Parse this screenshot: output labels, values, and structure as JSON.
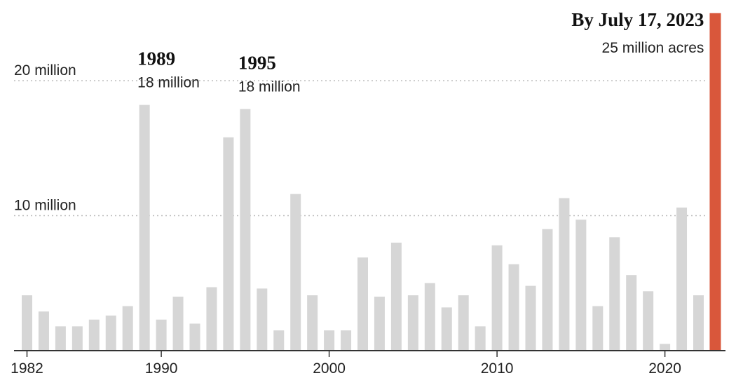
{
  "chart_data": {
    "type": "bar",
    "x": [
      1982,
      1983,
      1984,
      1985,
      1986,
      1987,
      1988,
      1989,
      1990,
      1991,
      1992,
      1993,
      1994,
      1995,
      1996,
      1997,
      1998,
      1999,
      2000,
      2001,
      2002,
      2003,
      2004,
      2005,
      2006,
      2007,
      2008,
      2009,
      2010,
      2011,
      2012,
      2013,
      2014,
      2015,
      2016,
      2017,
      2018,
      2019,
      2020,
      2021,
      2022,
      2023
    ],
    "values": [
      4.1,
      2.9,
      1.8,
      1.8,
      2.3,
      2.6,
      3.3,
      18.2,
      2.3,
      4.0,
      2.0,
      4.7,
      15.8,
      17.9,
      4.6,
      1.5,
      11.6,
      4.1,
      1.5,
      1.5,
      6.9,
      4.0,
      8.0,
      4.1,
      5.0,
      3.2,
      4.1,
      1.8,
      7.8,
      6.4,
      4.8,
      9.0,
      11.3,
      9.7,
      3.3,
      8.4,
      5.6,
      4.4,
      0.5,
      10.6,
      4.1,
      25.0
    ],
    "highlight": {
      "year": 2023,
      "color": "#d9573b"
    },
    "bar_color": "#d6d6d6",
    "y_ticks": [
      {
        "value": 10,
        "label": "10 million"
      },
      {
        "value": 20,
        "label": "20 million"
      }
    ],
    "x_ticks": [
      1982,
      1990,
      2000,
      2010,
      2020
    ],
    "ylim": [
      0,
      25
    ],
    "annotations": [
      {
        "year": 1989,
        "title": "1989",
        "subtitle": "18 million"
      },
      {
        "year": 1995,
        "title": "1995",
        "subtitle": "18 million"
      },
      {
        "year": 2023,
        "title": "By July 17, 2023",
        "subtitle": "25 million acres"
      }
    ],
    "grid": "dotted horizontal"
  }
}
